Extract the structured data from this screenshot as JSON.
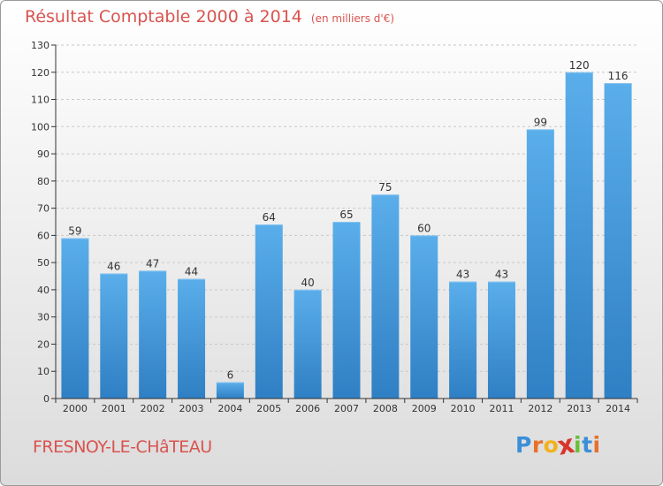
{
  "chart_data": {
    "type": "bar",
    "title": "Résultat Comptable 2000 à 2014",
    "subtitle": "(en milliers d'€)",
    "categories": [
      "2000",
      "2001",
      "2002",
      "2003",
      "2004",
      "2005",
      "2006",
      "2007",
      "2008",
      "2009",
      "2010",
      "2011",
      "2012",
      "2013",
      "2014"
    ],
    "values": [
      59,
      46,
      47,
      44,
      6,
      64,
      40,
      65,
      75,
      60,
      43,
      43,
      99,
      120,
      116
    ],
    "ylim": [
      0,
      130
    ],
    "yticks": [
      0,
      10,
      20,
      30,
      40,
      50,
      60,
      70,
      80,
      90,
      100,
      110,
      120,
      130
    ],
    "grid": true,
    "xlabel": "",
    "ylabel": "",
    "bar_color": "#4a9fe0"
  },
  "footer": {
    "commune": "FRESNOY-LE-CHâTEAU",
    "logo_letters": [
      "P",
      "r",
      "o",
      "x",
      "i",
      "t",
      "i"
    ],
    "logo_colors": [
      "#3a8fd8",
      "#e8702a",
      "#f2b21b",
      "#d9342b",
      "#6abf3a",
      "#3a8fd8",
      "#e8702a"
    ]
  },
  "colors": {
    "title": "#d9534f",
    "grid": "#c8c8c8",
    "axis": "#333333"
  }
}
